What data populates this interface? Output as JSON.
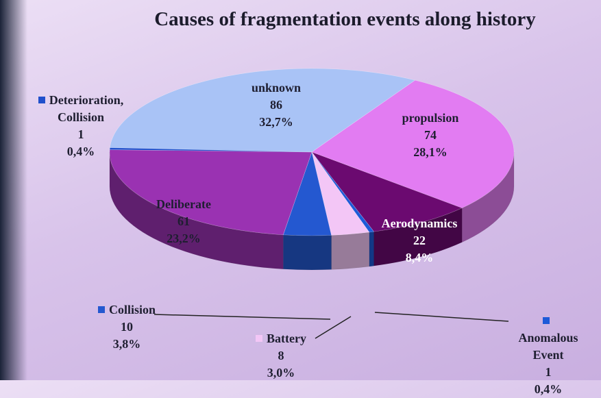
{
  "chart_data": {
    "type": "pie",
    "title": "Causes of fragmentation events along history",
    "categories": [
      "unknown",
      "propulsion",
      "Aerodynamics",
      "Anomalous Event",
      "Battery",
      "Collision",
      "Deliberate",
      "Deterioration, Collision"
    ],
    "values": [
      86,
      74,
      22,
      1,
      8,
      10,
      61,
      1
    ],
    "percent_labels": [
      "32,7%",
      "28,1%",
      "8,4%",
      "0,4%",
      "3,0%",
      "3,8%",
      "23,2%",
      "0,4%"
    ],
    "colors": [
      "#a9c3f6",
      "#e27cf2",
      "#6b0a70",
      "#1d5ad8",
      "#f3c6f6",
      "#2458d0",
      "#9a32b2",
      "#2050cc"
    ]
  }
}
